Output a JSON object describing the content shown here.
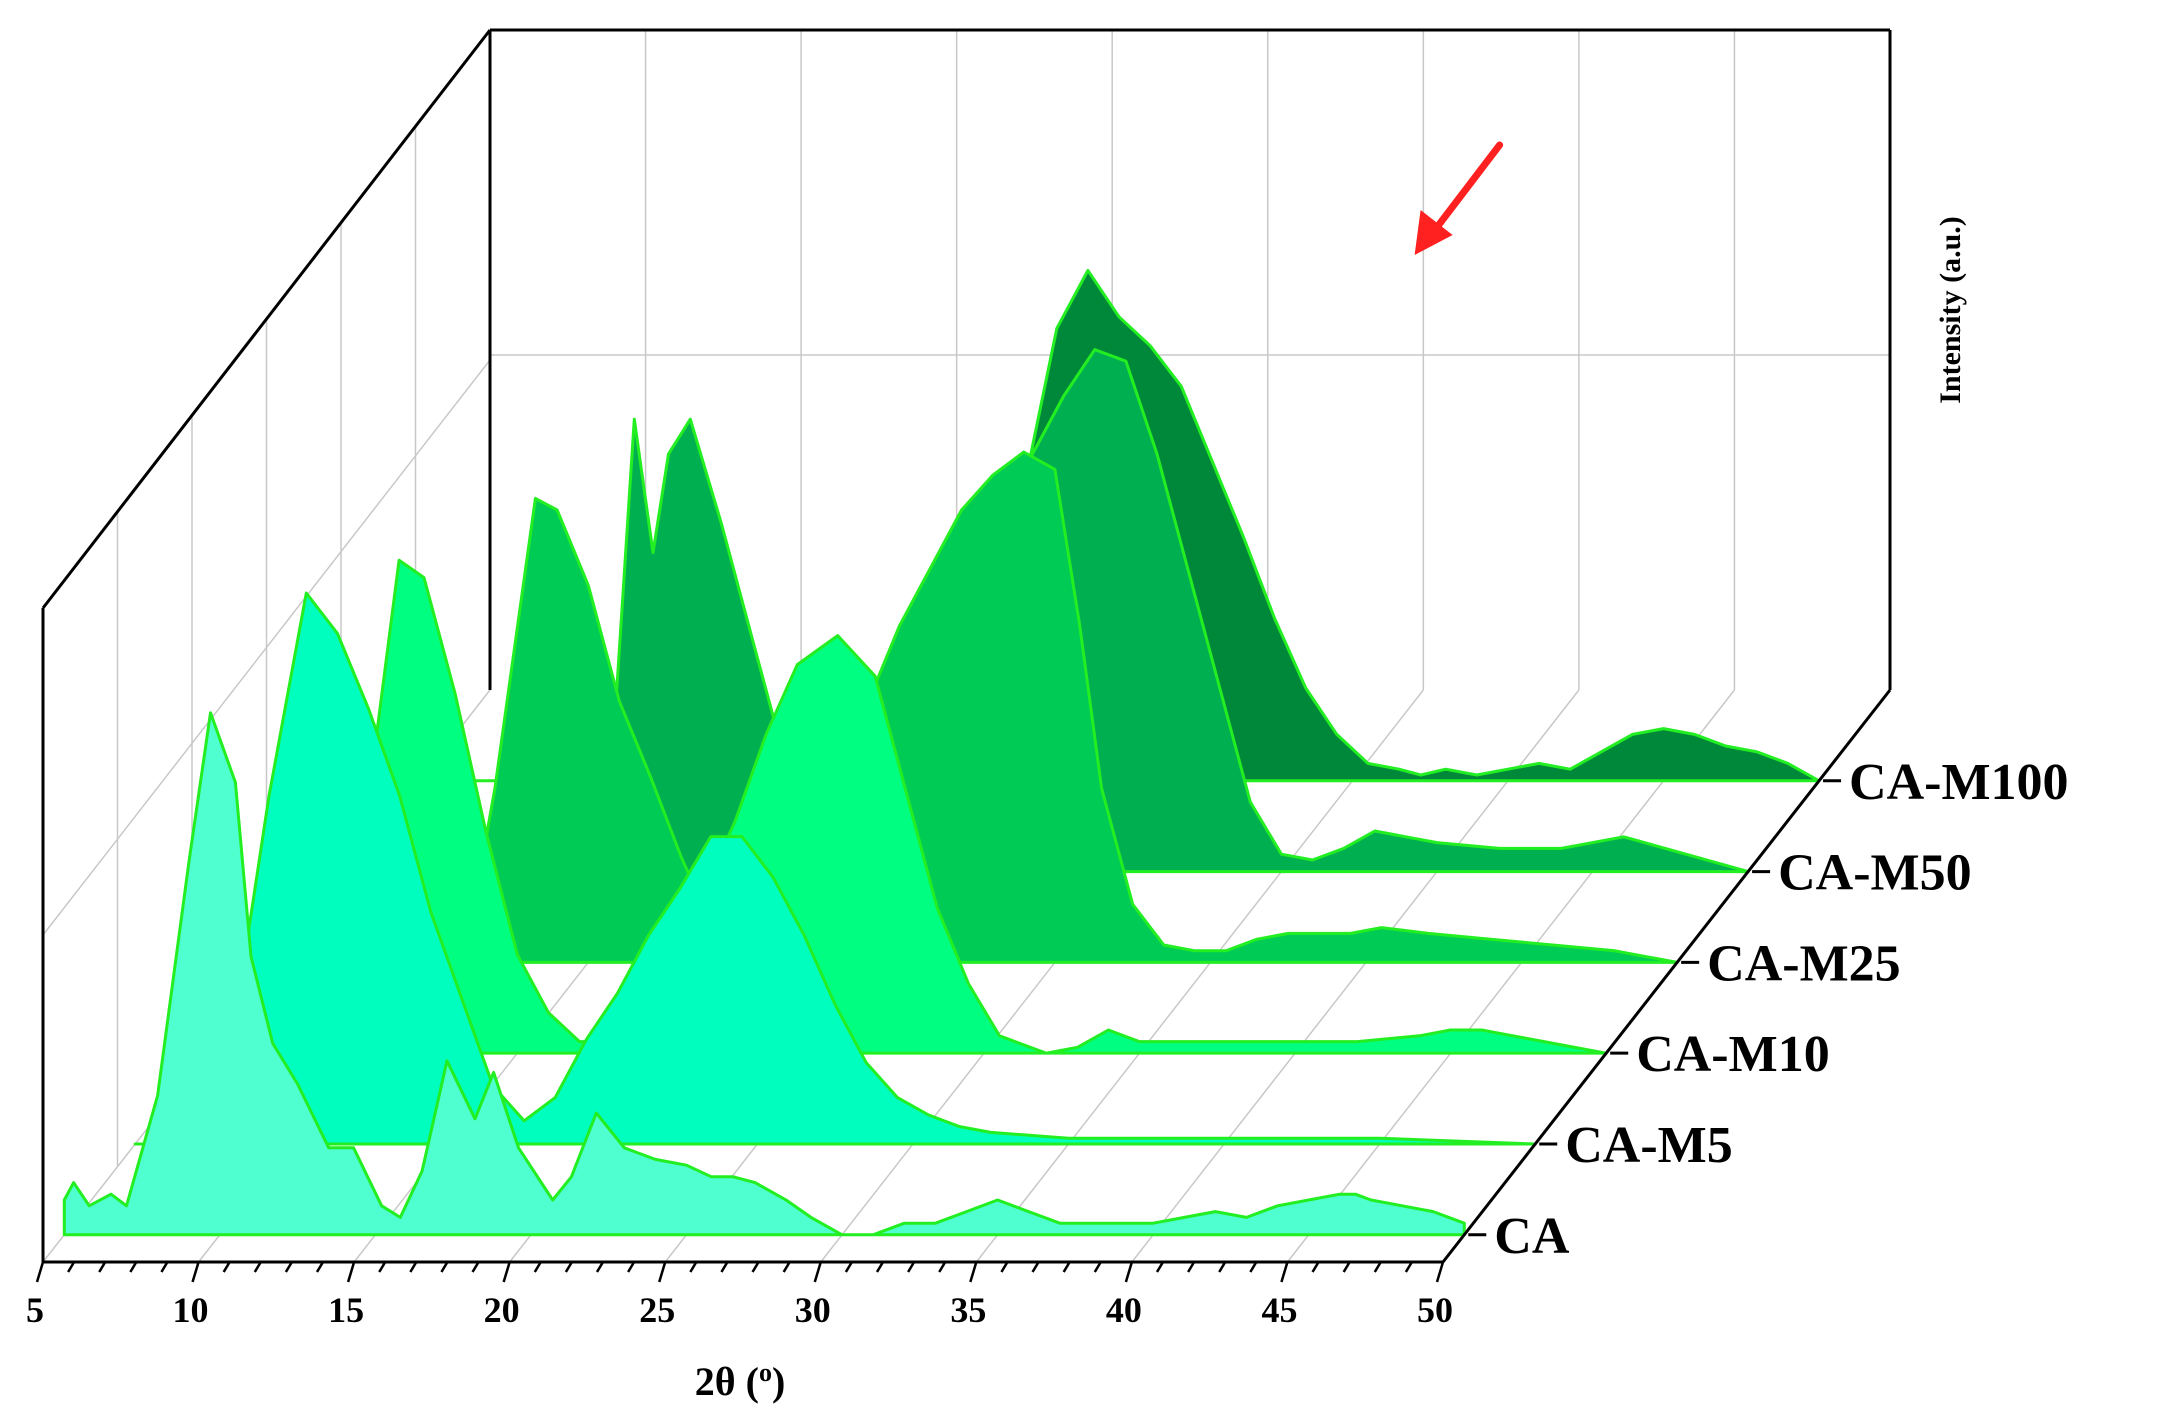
{
  "chart_data": {
    "type": "area",
    "subtype": "3d-waterfall",
    "xlabel": "2θ (o)",
    "xlabel_parts": {
      "main": "2θ (",
      "sup": "o",
      "close": ")"
    },
    "ylabel": "Intensity (a.u.)",
    "xlim": [
      5,
      50
    ],
    "x_ticks": [
      5,
      10,
      15,
      20,
      25,
      30,
      35,
      40,
      45,
      50
    ],
    "x_tick_labels": [
      "5",
      "10",
      "15",
      "20",
      "25",
      "30",
      "35",
      "40",
      "45",
      "50"
    ],
    "grid": true,
    "annotations": [
      {
        "type": "arrow",
        "color": "#ff2020",
        "points_to_x": 37,
        "series": "CA-M100"
      }
    ],
    "series": [
      {
        "name": "CA",
        "color": "#4fffcf",
        "x": [
          5,
          5.3,
          5.8,
          6.5,
          7,
          8,
          9,
          9.7,
          10.5,
          11,
          11.7,
          12.5,
          13.5,
          14.3,
          15.2,
          15.8,
          16.5,
          17.3,
          18.2,
          18.8,
          19.6,
          20.7,
          21.3,
          22.1,
          23,
          24,
          25,
          25.8,
          26.5,
          27.2,
          28.2,
          29,
          30,
          31,
          32,
          33,
          34,
          35,
          36,
          37,
          38,
          39,
          40,
          41,
          42,
          43,
          44,
          45,
          46,
          46.5,
          47,
          48,
          49,
          50
        ],
        "y": [
          6,
          9,
          5,
          7,
          5,
          24,
          64,
          90,
          78,
          48,
          33,
          26,
          15,
          15,
          5,
          3,
          11,
          30,
          20,
          28,
          15,
          6,
          10,
          21,
          15,
          13,
          12,
          10,
          10,
          9,
          6,
          3,
          0,
          0,
          2,
          2,
          4,
          6,
          4,
          2,
          2,
          2,
          2,
          3,
          4,
          3,
          5,
          6,
          7,
          7,
          6,
          5,
          4,
          2
        ]
      },
      {
        "name": "CA-M5",
        "color": "#00ffbe",
        "x": [
          5,
          6,
          7,
          8,
          9.3,
          10.5,
          11.5,
          12.5,
          13.5,
          14.5,
          15.5,
          16.5,
          17.5,
          18.5,
          19.5,
          20.5,
          21.5,
          22.5,
          23.5,
          24.5,
          25.5,
          26.5,
          27.5,
          28.5,
          29.5,
          30.5,
          31.5,
          32.5,
          35,
          40,
          45,
          50
        ],
        "y": [
          0,
          0,
          0,
          14,
          60,
          95,
          88,
          75,
          60,
          40,
          25,
          10,
          4,
          8,
          18,
          26,
          36,
          44,
          53,
          53,
          46,
          36,
          24,
          14,
          8,
          5,
          3,
          2,
          1,
          1,
          1,
          0
        ]
      },
      {
        "name": "CA-M10",
        "color": "#00ff80",
        "x": [
          5,
          8,
          9,
          10,
          11.2,
          12,
          13,
          14,
          15,
          16,
          17,
          18,
          19,
          20,
          21,
          22,
          23,
          24,
          25.3,
          26.5,
          27.5,
          28.5,
          29.5,
          30.5,
          31.5,
          32,
          33,
          34,
          35,
          37,
          40,
          42,
          44,
          45,
          46,
          47,
          48,
          50
        ],
        "y": [
          0,
          0,
          0,
          35,
          85,
          82,
          62,
          38,
          17,
          7,
          2,
          2,
          8,
          20,
          28,
          40,
          55,
          67,
          72,
          65,
          45,
          25,
          12,
          3,
          1,
          0,
          1,
          4,
          2,
          2,
          2,
          2,
          3,
          4,
          4,
          3,
          2,
          0
        ]
      },
      {
        "name": "CA-M25",
        "color": "#00cc55",
        "x": [
          5,
          10,
          11,
          12,
          13.3,
          14,
          15,
          16,
          17,
          18,
          19,
          20,
          21,
          22,
          23,
          24,
          25,
          26,
          27,
          28,
          29,
          30,
          30.8,
          31.5,
          32.5,
          33.5,
          34.5,
          35.5,
          36.5,
          37.5,
          38.5,
          39.5,
          40.5,
          42,
          44,
          46,
          48,
          50
        ],
        "y": [
          0,
          0,
          0,
          30,
          80,
          78,
          65,
          45,
          32,
          18,
          6,
          1,
          2,
          8,
          25,
          45,
          58,
          68,
          78,
          84,
          88,
          85,
          58,
          30,
          10,
          3,
          2,
          2,
          4,
          5,
          5,
          5,
          6,
          5,
          4,
          3,
          2,
          0
        ]
      },
      {
        "name": "CA-M50",
        "color": "#00b050",
        "x": [
          5,
          13,
          13.5,
          14.2,
          14.8,
          15.3,
          16,
          17,
          18,
          19,
          20,
          21,
          22,
          23,
          24,
          25,
          26,
          27,
          28,
          29,
          30,
          31,
          32,
          33,
          34,
          35,
          36,
          37,
          38,
          39,
          40,
          42,
          44,
          46,
          48,
          50
        ],
        "y": [
          0,
          0,
          20,
          78,
          55,
          72,
          78,
          60,
          40,
          20,
          5,
          0,
          0,
          5,
          20,
          40,
          55,
          72,
          82,
          90,
          88,
          72,
          52,
          32,
          12,
          3,
          2,
          4,
          7,
          6,
          5,
          4,
          4,
          6,
          3,
          0
        ]
      },
      {
        "name": "CA-M100",
        "color": "#00883a",
        "x": [
          5,
          14.5,
          15.5,
          16.5,
          17.5,
          18.5,
          19.5,
          20.5,
          21.5,
          22.5,
          23.5,
          24.5,
          25.5,
          26.5,
          27.5,
          28.5,
          29.5,
          30.5,
          31.5,
          32.5,
          33.5,
          34.5,
          35.5,
          36.5,
          37.2,
          38,
          39,
          40,
          41,
          42,
          43,
          44,
          45,
          46,
          47,
          48,
          49,
          50
        ],
        "y": [
          0,
          0,
          1,
          1,
          2,
          1,
          1,
          1,
          2,
          8,
          30,
          52,
          78,
          88,
          80,
          75,
          68,
          55,
          42,
          28,
          16,
          8,
          3,
          2,
          1,
          2,
          1,
          2,
          3,
          2,
          5,
          8,
          9,
          8,
          6,
          5,
          3,
          0
        ]
      }
    ]
  }
}
